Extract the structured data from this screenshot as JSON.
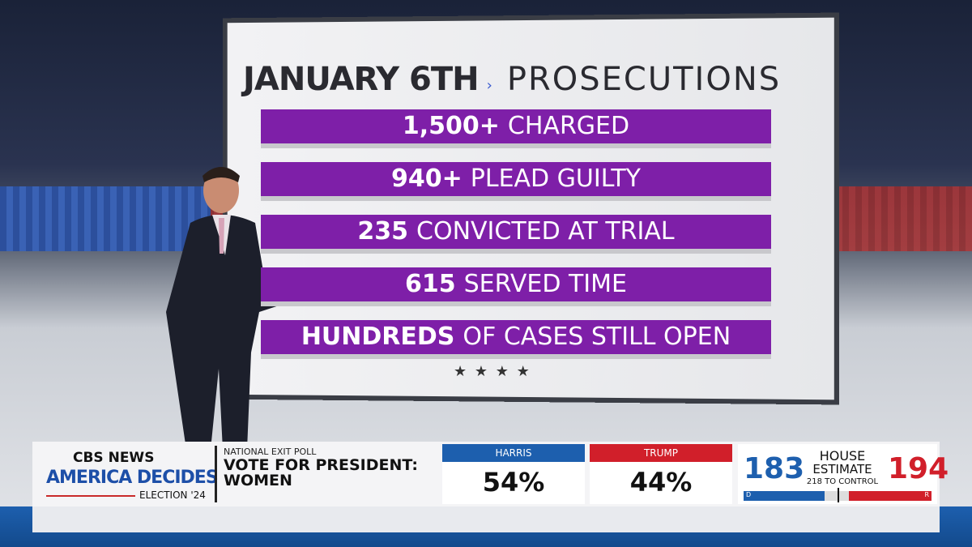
{
  "board": {
    "title_bold": "JANUARY 6TH",
    "title_light": "PROSECUTIONS",
    "items": [
      {
        "bold": "1,500+",
        "text": "CHARGED"
      },
      {
        "bold": "940+",
        "text": "PLEAD GUILTY"
      },
      {
        "bold": "235",
        "text": "CONVICTED AT TRIAL"
      },
      {
        "bold": "615",
        "text": "SERVED TIME"
      },
      {
        "bold": "HUNDREDS",
        "text": "OF CASES STILL OPEN"
      }
    ],
    "stars": "★ ★ ★ ★"
  },
  "lower_third": {
    "logo": {
      "network": "CBS NEWS",
      "show": "AMERICA DECIDES",
      "election": "ELECTION '24"
    },
    "poll": {
      "label": "NATIONAL EXIT POLL",
      "question": "VOTE FOR PRESIDENT:",
      "group": "WOMEN"
    },
    "candidates": [
      {
        "name": "HARRIS",
        "result": "54%"
      },
      {
        "name": "TRUMP",
        "result": "44%"
      }
    ],
    "house": {
      "dem": "183",
      "rep": "194",
      "title": "HOUSE",
      "subtitle": "ESTIMATE",
      "control": "218 TO CONTROL",
      "dem_label": "D",
      "rep_label": "R"
    }
  }
}
